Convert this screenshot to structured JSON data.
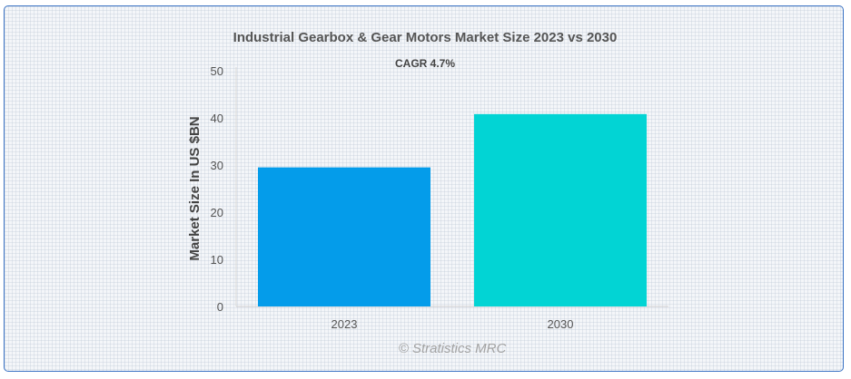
{
  "chart_data": {
    "type": "bar",
    "title": "Industrial Gearbox & Gear Motors Market Size 2023 vs 2030",
    "subtitle": "CAGR 4.7%",
    "ylabel": "Market Size In US $BN",
    "xlabel": "",
    "categories": [
      "2023",
      "2030"
    ],
    "values": [
      29.5,
      40.8
    ],
    "colors": [
      "#049cea",
      "#02d4d4"
    ],
    "ylim": [
      0,
      50
    ],
    "yticks": [
      "0",
      "10",
      "20",
      "30",
      "40",
      "50"
    ],
    "grid": false,
    "legend": "none"
  },
  "credit": "© Stratistics MRC"
}
